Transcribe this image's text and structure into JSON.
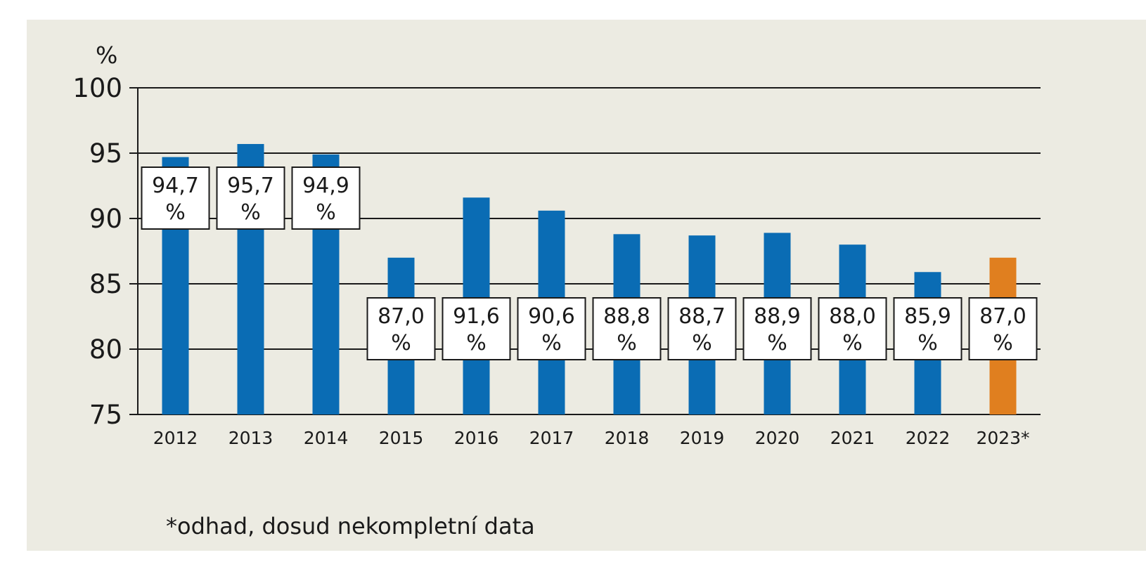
{
  "chart_data": {
    "type": "bar",
    "ylabel": "%",
    "ylim": [
      75,
      100
    ],
    "yticks": [
      75,
      80,
      85,
      90,
      95,
      100
    ],
    "grid": true,
    "categories": [
      "2012",
      "2013",
      "2014",
      "2015",
      "2016",
      "2017",
      "2018",
      "2019",
      "2020",
      "2021",
      "2022",
      "2023*"
    ],
    "values": [
      94.7,
      95.7,
      94.9,
      87.0,
      91.6,
      90.6,
      88.8,
      88.7,
      88.9,
      88.0,
      85.9,
      87.0
    ],
    "data_labels": [
      "94,7 %",
      "95,7 %",
      "94,9 %",
      "87,0 %",
      "91,6 %",
      "90,6 %",
      "88,8 %",
      "88,7 %",
      "88,9 %",
      "88,0 %",
      "85,9 %",
      "87,0 %"
    ],
    "estimated": [
      false,
      false,
      false,
      false,
      false,
      false,
      false,
      false,
      false,
      false,
      false,
      true
    ],
    "colors": {
      "actual": "#0a6cb4",
      "estimate": "#e07f1f"
    },
    "footnote": "*odhad, dosud nekompletní data"
  }
}
